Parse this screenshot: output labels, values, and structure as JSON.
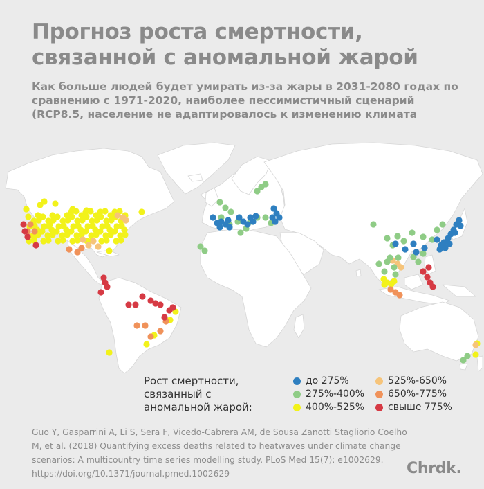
{
  "title": "Прогноз роста смертности, связанной с аномальной жарой",
  "subtitle": "Как больше людей будет умирать из-за жары в 2031-2080 годах по сравнению с 1971-2020, наиболее пессимистичный сценарий (RCP8.5, население не адаптировалось к изменению климата",
  "legend": {
    "title": "Рост смертности, связанный с аномальной жарой:",
    "items": [
      {
        "label": "до 275%",
        "color": "#2e7fc0"
      },
      {
        "label": "275%-400%",
        "color": "#8fcc86"
      },
      {
        "label": "400%-525%",
        "color": "#f2f21a"
      },
      {
        "label": "525%-650%",
        "color": "#f6c47a"
      },
      {
        "label": "650%-775%",
        "color": "#f0925a"
      },
      {
        "label": "свыше 775%",
        "color": "#d63a44"
      }
    ]
  },
  "source": "Guo Y, Gasparrini A, Li S, Sera F, Vicedo-Cabrera AM, de Sousa Zanotti Stagliorio Coelho M, et al. (2018) Quantifying excess deaths related to heatwaves under climate change scenarios: A multicountry time series modelling study. PLoS Med 15(7): e1002629. https://doi.org/10.1371/journal.pmed.1002629",
  "logo": "Chrdk.",
  "colors": {
    "background": "#ebebeb",
    "land": "#ffffff",
    "border": "#d4d4d4"
  }
}
